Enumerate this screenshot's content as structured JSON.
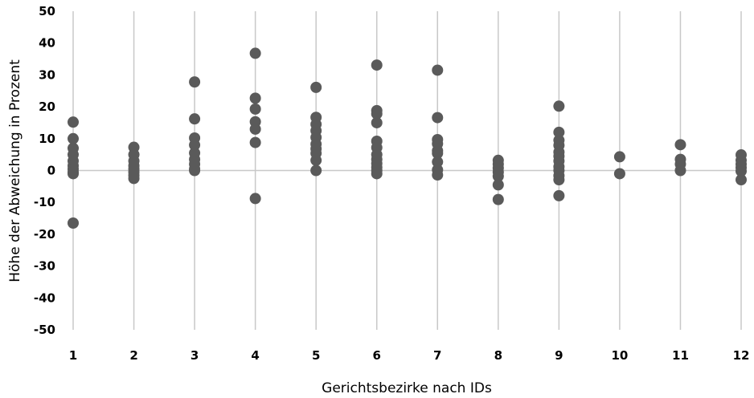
{
  "chart_data": {
    "type": "scatter",
    "xlabel": "Gerichtsbezirke nach IDs",
    "ylabel": "Höhe der Abweichung in Prozent",
    "ylim": [
      -50,
      50
    ],
    "y_ticks": [
      50,
      40,
      30,
      20,
      10,
      0,
      -10,
      -20,
      -30,
      -40,
      -50
    ],
    "x_ticks": [
      1,
      2,
      3,
      4,
      5,
      6,
      7,
      8,
      9,
      10,
      11,
      12
    ],
    "grid": "vertical",
    "marker_color": "#5a5a5a",
    "points": [
      {
        "x": 1,
        "y": 15.2
      },
      {
        "x": 1,
        "y": 10
      },
      {
        "x": 1,
        "y": 7
      },
      {
        "x": 1,
        "y": 5
      },
      {
        "x": 1,
        "y": 3
      },
      {
        "x": 1,
        "y": 1.5
      },
      {
        "x": 1,
        "y": 0.5
      },
      {
        "x": 1,
        "y": -0.5
      },
      {
        "x": 1,
        "y": -1
      },
      {
        "x": 1,
        "y": -16.5
      },
      {
        "x": 2,
        "y": 7.3
      },
      {
        "x": 2,
        "y": 5
      },
      {
        "x": 2,
        "y": 3
      },
      {
        "x": 2,
        "y": 1.5
      },
      {
        "x": 2,
        "y": 0.5
      },
      {
        "x": 2,
        "y": -0.5
      },
      {
        "x": 2,
        "y": -1.5
      },
      {
        "x": 2,
        "y": -2.5
      },
      {
        "x": 3,
        "y": 27.8
      },
      {
        "x": 3,
        "y": 16.2
      },
      {
        "x": 3,
        "y": 10.2
      },
      {
        "x": 3,
        "y": 8
      },
      {
        "x": 3,
        "y": 5.5
      },
      {
        "x": 3,
        "y": 3.5
      },
      {
        "x": 3,
        "y": 2
      },
      {
        "x": 3,
        "y": 0.5
      },
      {
        "x": 3,
        "y": 0
      },
      {
        "x": 4,
        "y": 36.8
      },
      {
        "x": 4,
        "y": 22.7
      },
      {
        "x": 4,
        "y": 19.3
      },
      {
        "x": 4,
        "y": 15.3
      },
      {
        "x": 4,
        "y": 13
      },
      {
        "x": 4,
        "y": 8.8
      },
      {
        "x": 4,
        "y": -8.8
      },
      {
        "x": 5,
        "y": 26.1
      },
      {
        "x": 5,
        "y": 16.7
      },
      {
        "x": 5,
        "y": 14.5
      },
      {
        "x": 5,
        "y": 12.5
      },
      {
        "x": 5,
        "y": 10.4
      },
      {
        "x": 5,
        "y": 8.3
      },
      {
        "x": 5,
        "y": 6.8
      },
      {
        "x": 5,
        "y": 5.4
      },
      {
        "x": 5,
        "y": 3.2
      },
      {
        "x": 5,
        "y": 0
      },
      {
        "x": 6,
        "y": 33.1
      },
      {
        "x": 6,
        "y": 18.8
      },
      {
        "x": 6,
        "y": 17.8
      },
      {
        "x": 6,
        "y": 15
      },
      {
        "x": 6,
        "y": 9.2
      },
      {
        "x": 6,
        "y": 7.2
      },
      {
        "x": 6,
        "y": 5
      },
      {
        "x": 6,
        "y": 3.5
      },
      {
        "x": 6,
        "y": 2.2
      },
      {
        "x": 6,
        "y": 1
      },
      {
        "x": 6,
        "y": 0
      },
      {
        "x": 6,
        "y": -1
      },
      {
        "x": 7,
        "y": 31.5
      },
      {
        "x": 7,
        "y": 16.6
      },
      {
        "x": 7,
        "y": 9.7
      },
      {
        "x": 7,
        "y": 8.4
      },
      {
        "x": 7,
        "y": 6.2
      },
      {
        "x": 7,
        "y": 5.4
      },
      {
        "x": 7,
        "y": 2.7
      },
      {
        "x": 7,
        "y": 0.2
      },
      {
        "x": 7,
        "y": -1.4
      },
      {
        "x": 8,
        "y": 3.2
      },
      {
        "x": 8,
        "y": 2
      },
      {
        "x": 8,
        "y": 0.8
      },
      {
        "x": 8,
        "y": -0.5
      },
      {
        "x": 8,
        "y": -1.8
      },
      {
        "x": 8,
        "y": -4.5
      },
      {
        "x": 8,
        "y": -9.1
      },
      {
        "x": 9,
        "y": 20.2
      },
      {
        "x": 9,
        "y": 12
      },
      {
        "x": 9,
        "y": 9.5
      },
      {
        "x": 9,
        "y": 7.9
      },
      {
        "x": 9,
        "y": 5.8
      },
      {
        "x": 9,
        "y": 4.5
      },
      {
        "x": 9,
        "y": 3
      },
      {
        "x": 9,
        "y": 1.2
      },
      {
        "x": 9,
        "y": 0
      },
      {
        "x": 9,
        "y": -1.6
      },
      {
        "x": 9,
        "y": -2.9
      },
      {
        "x": 9,
        "y": -7.9
      },
      {
        "x": 10,
        "y": 4.3
      },
      {
        "x": 10,
        "y": -1
      },
      {
        "x": 11,
        "y": 8.1
      },
      {
        "x": 11,
        "y": 3.5
      },
      {
        "x": 11,
        "y": 2
      },
      {
        "x": 11,
        "y": 0
      },
      {
        "x": 12,
        "y": 4.9
      },
      {
        "x": 12,
        "y": 3.2
      },
      {
        "x": 12,
        "y": 2
      },
      {
        "x": 12,
        "y": 0.9
      },
      {
        "x": 12,
        "y": -0.2
      },
      {
        "x": 12,
        "y": -2.9
      }
    ]
  }
}
